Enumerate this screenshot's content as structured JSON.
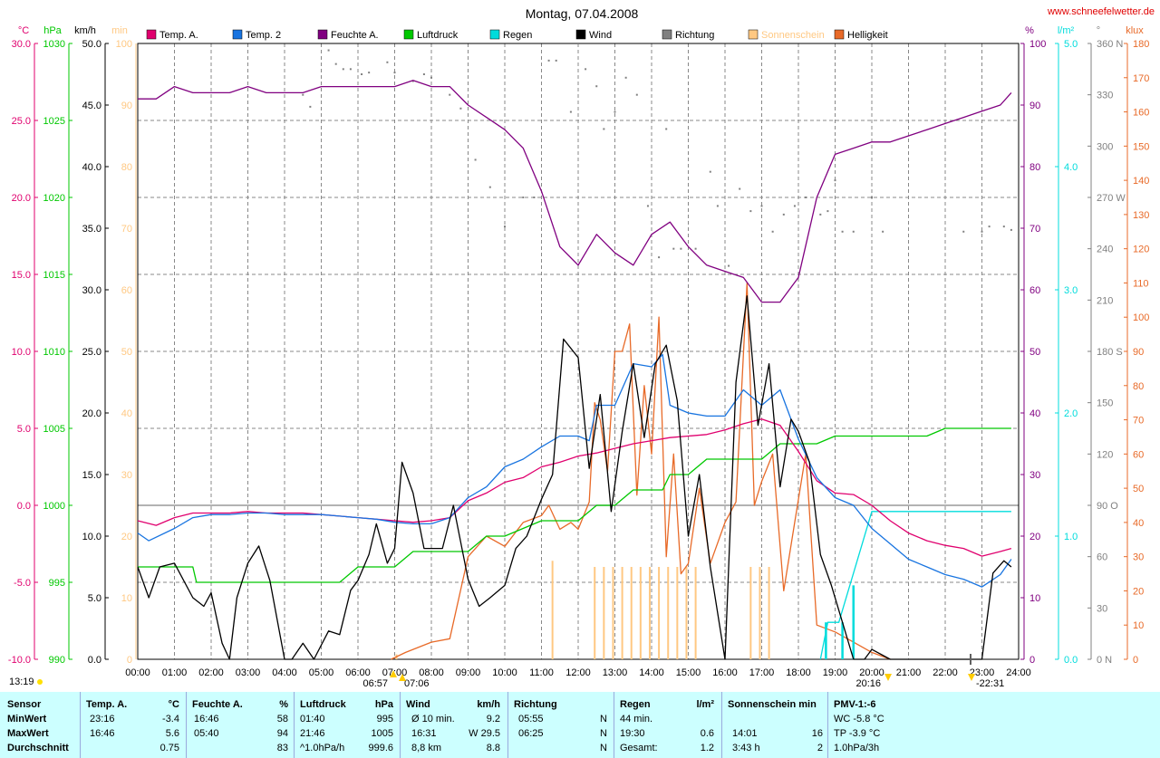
{
  "page": {
    "title": "Montag, 07.04.2008",
    "site": "www.schneefelwetter.de"
  },
  "colors": {
    "temp_a": "#e0006e",
    "temp2": "#1874e0",
    "feuchte": "#800080",
    "luftdruck": "#00c800",
    "regen": "#00dcdc",
    "wind": "#000000",
    "richtung": "#808080",
    "sonnenschein": "#ffc882",
    "helligkeit": "#e86a28",
    "summary_bg": "#ccffff"
  },
  "left_axes": {
    "units": [
      "°C",
      "hPa",
      "km/h",
      "min"
    ],
    "temp_ticks": [
      "30.0",
      "25.0",
      "20.0",
      "15.0",
      "10.0",
      "5.0",
      "0.0",
      "-5.0",
      "-10.0"
    ],
    "hpa_ticks": [
      "1030",
      "1025",
      "1020",
      "1015",
      "1010",
      "1005",
      "1000",
      "995",
      "990"
    ],
    "wind_ticks": [
      "50.0",
      "45.0",
      "40.0",
      "35.0",
      "30.0",
      "25.0",
      "20.0",
      "15.0",
      "10.0",
      "5.0",
      "0.0"
    ],
    "min_ticks": [
      "100",
      "90",
      "80",
      "70",
      "60",
      "50",
      "40",
      "30",
      "20",
      "10",
      "0"
    ]
  },
  "right_axes": {
    "units": [
      "%",
      "l/m²",
      "°",
      "klux"
    ],
    "pct_ticks": [
      "100",
      "90",
      "80",
      "70",
      "60",
      "50",
      "40",
      "30",
      "20",
      "10",
      "0"
    ],
    "rain_ticks": [
      "5.0",
      "4.0",
      "3.0",
      "2.0",
      "1.0",
      "0.0"
    ],
    "deg_ticks": [
      "360 N",
      "330",
      "300",
      "270 W",
      "240",
      "210",
      "180 S",
      "150",
      "120",
      "90 O",
      "60",
      "30",
      "0 N"
    ],
    "klux_ticks": [
      "180",
      "170",
      "160",
      "150",
      "140",
      "130",
      "120",
      "110",
      "100",
      "90",
      "80",
      "70",
      "60",
      "50",
      "40",
      "30",
      "20",
      "10",
      "0"
    ]
  },
  "x_ticks": [
    "00:00",
    "01:00",
    "02:00",
    "03:00",
    "04:00",
    "05:00",
    "06:00",
    "07:00",
    "08:00",
    "09:00",
    "10:00",
    "11:00",
    "12:00",
    "13:00",
    "14:00",
    "15:00",
    "16:00",
    "17:00",
    "18:00",
    "19:00",
    "20:00",
    "21:00",
    "22:00",
    "23:00",
    "24:00"
  ],
  "events": [
    "13:19",
    "06:57",
    "07:06",
    "20:16",
    "-22:31"
  ],
  "legend": [
    "Temp. A.",
    "Temp. 2",
    "Feuchte A.",
    "Luftdruck",
    "Regen",
    "Wind",
    "Richtung",
    "Sonnenschein",
    "Helligkeit"
  ],
  "chart_data": {
    "type": "line",
    "title": "Montag, 07.04.2008",
    "x_range": [
      "00:00",
      "24:00"
    ],
    "ylim_temp": [
      -10,
      30
    ],
    "ylim_hpa": [
      990,
      1030
    ],
    "ylim_wind": [
      0,
      50
    ],
    "ylim_sun_min": [
      0,
      100
    ],
    "ylim_pct": [
      0,
      100
    ],
    "ylim_rain": [
      0,
      5
    ],
    "ylim_deg": [
      0,
      360
    ],
    "ylim_klux": [
      0,
      180
    ],
    "grid": true,
    "series": [
      {
        "name": "Temp. A.",
        "axis": "temp",
        "x": [
          0,
          0.5,
          1,
          1.5,
          2,
          2.5,
          3,
          3.5,
          4,
          4.5,
          5,
          5.5,
          6,
          6.5,
          7,
          7.5,
          8,
          8.5,
          9,
          9.5,
          10,
          10.5,
          11,
          11.5,
          12,
          12.5,
          13,
          13.5,
          14,
          14.5,
          15,
          15.5,
          16,
          16.5,
          17,
          17.5,
          18,
          18.5,
          19,
          19.5,
          20,
          20.5,
          21,
          21.5,
          22,
          22.5,
          23,
          23.5,
          23.8
        ],
        "y": [
          -1.0,
          -1.3,
          -0.8,
          -0.5,
          -0.5,
          -0.5,
          -0.4,
          -0.5,
          -0.5,
          -0.5,
          -0.6,
          -0.7,
          -0.8,
          -0.9,
          -1.0,
          -1.1,
          -1.0,
          -0.8,
          0.3,
          0.8,
          1.5,
          1.8,
          2.5,
          2.8,
          3.2,
          3.4,
          3.7,
          4.0,
          4.2,
          4.4,
          4.5,
          4.6,
          4.9,
          5.3,
          5.6,
          5.2,
          3.5,
          1.6,
          0.8,
          0.7,
          0.0,
          -1.0,
          -1.8,
          -2.3,
          -2.6,
          -2.8,
          -3.3,
          -3.0,
          -2.8
        ]
      },
      {
        "name": "Temp. 2",
        "axis": "temp",
        "x": [
          0,
          0.3,
          1,
          1.5,
          2,
          2.5,
          3,
          3.5,
          4,
          4.5,
          5,
          5.5,
          6,
          6.5,
          7,
          7.5,
          8,
          8.5,
          9,
          9.5,
          10,
          10.5,
          11,
          11.5,
          12,
          12.3,
          12.5,
          13,
          13.5,
          14,
          14.3,
          14.5,
          15,
          15.5,
          16,
          16.5,
          17,
          17.5,
          18,
          18.5,
          19,
          19.5,
          20,
          20.5,
          21,
          21.5,
          22,
          22.5,
          23,
          23.5,
          23.8
        ],
        "y": [
          -1.8,
          -2.3,
          -1.5,
          -0.8,
          -0.6,
          -0.6,
          -0.5,
          -0.5,
          -0.6,
          -0.6,
          -0.6,
          -0.7,
          -0.8,
          -0.9,
          -1.1,
          -1.2,
          -1.2,
          -0.8,
          0.5,
          1.2,
          2.5,
          3.0,
          3.8,
          4.5,
          4.5,
          4.2,
          6.5,
          6.5,
          9.2,
          9.0,
          9.8,
          6.5,
          6.0,
          5.8,
          5.8,
          7.5,
          6.5,
          7.5,
          4.3,
          1.8,
          0.5,
          0.0,
          -1.5,
          -2.5,
          -3.5,
          -4.0,
          -4.5,
          -4.8,
          -5.3,
          -4.5,
          -3.5
        ]
      },
      {
        "name": "Feuchte A.",
        "axis": "pct",
        "x": [
          0,
          0.5,
          1,
          1.5,
          2,
          2.5,
          3,
          3.5,
          4,
          4.5,
          5,
          5.5,
          6,
          6.5,
          7,
          7.5,
          8,
          8.5,
          9,
          9.5,
          10,
          10.5,
          11,
          11.5,
          12,
          12.5,
          13,
          13.5,
          14,
          14.5,
          15,
          15.5,
          16,
          16.5,
          17,
          17.5,
          18,
          18.5,
          19,
          19.5,
          20,
          20.5,
          21,
          21.5,
          22,
          22.5,
          23,
          23.5,
          23.8
        ],
        "y": [
          91,
          91,
          93,
          92,
          92,
          92,
          93,
          92,
          92,
          92,
          93,
          93,
          93,
          93,
          93,
          94,
          93,
          93,
          90,
          88,
          86,
          83,
          76,
          67,
          64,
          69,
          66,
          64,
          69,
          71,
          67,
          64,
          63,
          62,
          58,
          58,
          62,
          75,
          82,
          83,
          84,
          84,
          85,
          86,
          87,
          88,
          89,
          90,
          92
        ]
      },
      {
        "name": "Luftdruck",
        "axis": "hpa",
        "x": [
          0,
          1.5,
          1.6,
          5.5,
          6,
          6.5,
          7,
          7.5,
          8,
          9,
          9.5,
          10,
          11,
          11.5,
          12,
          12.5,
          13,
          13.5,
          14,
          14.3,
          14.5,
          15,
          15.5,
          16,
          16.5,
          17,
          17.5,
          18,
          18.5,
          19,
          19.5,
          20,
          20.5,
          21,
          21.5,
          22,
          22.5,
          23,
          23.5,
          23.8
        ],
        "y": [
          996.0,
          996.0,
          995.0,
          995.0,
          996.0,
          996.0,
          996.0,
          997.0,
          997.0,
          997.0,
          998.0,
          998.0,
          999.0,
          999.0,
          999.0,
          1000.0,
          1000.0,
          1001.0,
          1001.0,
          1001.0,
          1002.0,
          1002.0,
          1003.0,
          1003.0,
          1003.0,
          1003.0,
          1004.0,
          1004.0,
          1004.0,
          1004.5,
          1004.5,
          1004.5,
          1004.5,
          1004.5,
          1004.5,
          1005.0,
          1005.0,
          1005.0,
          1005.0,
          1005.0
        ]
      },
      {
        "name": "Regen",
        "axis": "rain",
        "x": [
          18.6,
          18.8,
          19.1,
          19.5,
          20.0,
          20.5,
          21,
          22,
          23,
          23.8
        ],
        "y": [
          0.0,
          0.3,
          0.3,
          0.7,
          1.2,
          1.2,
          1.2,
          1.2,
          1.2,
          1.2
        ]
      },
      {
        "name": "Wind",
        "axis": "wind",
        "x": [
          0,
          0.3,
          0.6,
          1.0,
          1.5,
          1.8,
          2.0,
          2.3,
          2.5,
          2.7,
          3.0,
          3.3,
          3.6,
          4.0,
          4.2,
          4.5,
          4.8,
          5.2,
          5.5,
          5.8,
          6.0,
          6.3,
          6.5,
          6.8,
          7.0,
          7.2,
          7.5,
          7.8,
          8.0,
          8.3,
          8.6,
          9.0,
          9.3,
          9.6,
          10.0,
          10.3,
          10.6,
          11.0,
          11.3,
          11.6,
          12.0,
          12.3,
          12.6,
          12.9,
          13.2,
          13.5,
          13.8,
          14.1,
          14.4,
          14.7,
          15.0,
          15.3,
          15.6,
          16.0,
          16.3,
          16.6,
          16.9,
          17.2,
          17.5,
          17.8,
          18.0,
          18.3,
          18.6,
          18.9,
          19.2,
          19.5,
          19.8,
          20.0,
          20.5,
          21,
          22,
          22.5,
          23.0,
          23.3,
          23.6,
          23.8
        ],
        "y": [
          7.5,
          5.0,
          7.5,
          7.8,
          5.0,
          4.3,
          5.4,
          1.3,
          0.0,
          5.0,
          7.8,
          9.2,
          6.4,
          0.0,
          0.0,
          1.3,
          0.0,
          2.3,
          2.0,
          5.6,
          6.4,
          8.5,
          11.0,
          7.8,
          9.0,
          16.0,
          13.5,
          9.0,
          9.0,
          9.0,
          12.5,
          6.5,
          4.3,
          5.0,
          6.0,
          9.0,
          10.0,
          13.0,
          15.0,
          26.0,
          24.5,
          15.5,
          21.5,
          12.0,
          18.5,
          24.0,
          18.0,
          24.0,
          25.5,
          21.0,
          10.0,
          15.0,
          7.5,
          0.0,
          22.5,
          29.5,
          19.0,
          24.0,
          14.0,
          19.5,
          18.5,
          16.0,
          8.5,
          6.0,
          3.0,
          0.0,
          0.0,
          0.8,
          0.0,
          0.0,
          0.0,
          0.0,
          0.0,
          7.0,
          8.0,
          7.5
        ]
      },
      {
        "name": "Richtung",
        "axis": "deg",
        "x": [
          4.5,
          4.7,
          5.2,
          5.4,
          5.6,
          5.8,
          6.1,
          6.3,
          6.8,
          7.0,
          7.5,
          7.8,
          8.0,
          8.5,
          8.8,
          9.2,
          9.6,
          10.0,
          10.5,
          10.8,
          11.2,
          11.4,
          11.8,
          12.0,
          12.2,
          12.5,
          12.7,
          13.0,
          13.3,
          13.6,
          13.9,
          14.2,
          14.4,
          14.6,
          14.8,
          15.2,
          15.6,
          15.8,
          16.1,
          16.4,
          16.7,
          17.0,
          17.3,
          17.6,
          17.9,
          18.2,
          18.6,
          18.8,
          19.0,
          19.2,
          19.5,
          20.0,
          20.3,
          22.5,
          23.0,
          23.2,
          23.6,
          23.8
        ],
        "y": [
          330,
          323,
          356,
          348,
          345,
          345,
          342,
          343,
          349,
          343,
          338,
          342,
          340,
          330,
          322,
          292,
          276,
          253,
          270,
          270,
          350,
          350,
          320,
          360,
          345,
          335,
          310,
          320,
          340,
          330,
          265,
          235,
          310,
          240,
          240,
          240,
          285,
          265,
          230,
          275,
          262,
          265,
          250,
          260,
          265,
          270,
          260,
          262,
          280,
          250,
          250,
          270,
          250,
          250,
          250,
          253,
          253,
          251
        ]
      },
      {
        "name": "Sonnenschein",
        "axis": "sun_min",
        "x": [
          7.05,
          11.3,
          12.45,
          12.7,
          12.95,
          13.2,
          13.45,
          13.7,
          13.95,
          14.2,
          14.45,
          14.7,
          14.95,
          15.2,
          16.7,
          16.95,
          17.2
        ],
        "y": [
          0.8,
          16.0,
          15.0,
          15.0,
          15.0,
          15.0,
          15.0,
          15.0,
          15.0,
          15.0,
          15.0,
          15.0,
          15.0,
          15.0,
          15.0,
          15.0,
          15.0
        ]
      },
      {
        "name": "Helligkeit",
        "axis": "klux",
        "x": [
          6.9,
          7.3,
          8.0,
          8.5,
          9.0,
          9.5,
          10.0,
          10.5,
          11.0,
          11.2,
          11.5,
          11.8,
          12.0,
          12.3,
          12.45,
          12.6,
          12.8,
          13.0,
          13.2,
          13.4,
          13.6,
          13.8,
          14.0,
          14.2,
          14.4,
          14.6,
          14.8,
          15.0,
          15.3,
          15.6,
          16.0,
          16.3,
          16.6,
          16.8,
          17.0,
          17.3,
          17.6,
          17.9,
          18.2,
          18.5,
          19.0,
          19.5,
          20.0,
          20.5
        ],
        "y": [
          0,
          2,
          5,
          6,
          30,
          36,
          33,
          40,
          42,
          45,
          38,
          40,
          38,
          46,
          75,
          70,
          55,
          90,
          90,
          98,
          48,
          80,
          60,
          100,
          30,
          60,
          25,
          28,
          50,
          28,
          40,
          46,
          110,
          45,
          52,
          60,
          20,
          40,
          60,
          10,
          8,
          5,
          2,
          0
        ]
      }
    ]
  },
  "summary": {
    "headers": {
      "sensor": "Sensor",
      "temp": "Temp. A.",
      "temp_unit": "°C",
      "feuchte": "Feuchte A.",
      "feuchte_unit": "%",
      "luftdruck": "Luftdruck",
      "luftdruck_unit": "hPa",
      "wind": "Wind",
      "wind_unit": "km/h",
      "richtung": "Richtung",
      "regen": "Regen",
      "regen_unit": "l/m²",
      "sonnenschein": "Sonnenschein min",
      "pmv": "PMV-1:-6"
    },
    "rows": [
      {
        "label": "MinWert",
        "temp_time": "23:16",
        "temp_val": "-3.4",
        "feuchte_time": "16:46",
        "feuchte_val": "58",
        "luftdruck_time": "01:40",
        "luftdruck_val": "995",
        "wind_time": "Ø 10 min.",
        "wind_val": "9.2",
        "richtung_time": "05:55",
        "richtung_val": "N",
        "regen_time": "44 min.",
        "regen_val": "",
        "sonne_time": "",
        "sonne_val": "",
        "pmv": "WC -5.8 °C"
      },
      {
        "label": "MaxWert",
        "temp_time": "16:46",
        "temp_val": "5.6",
        "feuchte_time": "05:40",
        "feuchte_val": "94",
        "luftdruck_time": "21:46",
        "luftdruck_val": "1005",
        "wind_time": "16:31",
        "wind_val": "W 29.5",
        "richtung_time": "06:25",
        "richtung_val": "N",
        "regen_time": "19:30",
        "regen_val": "0.6",
        "sonne_time": "14:01",
        "sonne_val": "16",
        "pmv": "TP -3.9 °C"
      },
      {
        "label": "Durchschnitt",
        "temp_time": "",
        "temp_val": "0.75",
        "feuchte_time": "",
        "feuchte_val": "83",
        "luftdruck_time": "^1.0hPa/h",
        "luftdruck_val": "999.6",
        "wind_time": "8,8 km",
        "wind_val": "8.8",
        "richtung_time": "",
        "richtung_val": "N",
        "regen_time": "Gesamt:",
        "regen_val": "1.2",
        "sonne_time": "3:43 h",
        "sonne_val": "2",
        "pmv": "1.0hPa/3h"
      }
    ]
  }
}
